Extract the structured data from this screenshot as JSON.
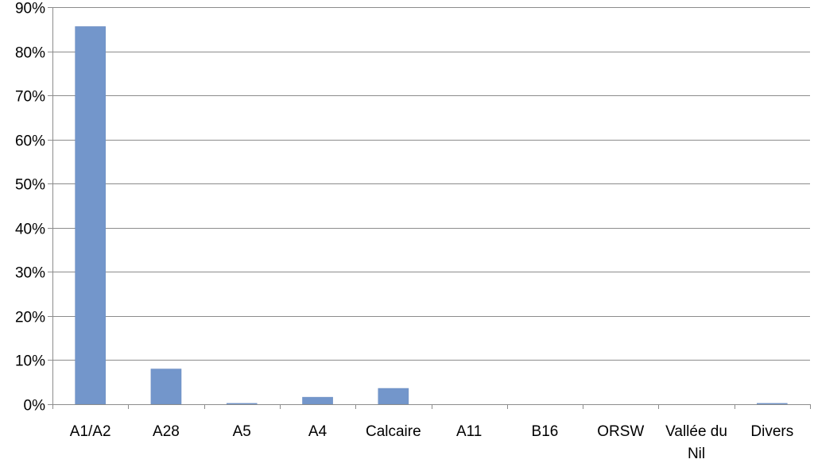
{
  "chart_data": {
    "type": "bar",
    "categories": [
      "A1/A2",
      "A28",
      "A5",
      "A4",
      "Calcaire",
      "A11",
      "B16",
      "ORSW",
      "Vallée du Nil",
      "Divers"
    ],
    "values": [
      85.6,
      8.0,
      0.2,
      1.6,
      3.6,
      0.0,
      0.0,
      0.0,
      0.0,
      0.2
    ],
    "value_unit": "%",
    "ylim": [
      0,
      90
    ],
    "ytick_step": 10,
    "yticks": [
      "0%",
      "10%",
      "20%",
      "30%",
      "40%",
      "50%",
      "60%",
      "70%",
      "80%",
      "90%"
    ],
    "grid": true,
    "legend": "none",
    "colors": {
      "bar": "#7396cb",
      "bar_edge": "#6a8cc0",
      "grid": "#8c8c8c",
      "axis": "#8c8c8c",
      "text": "#000000"
    }
  }
}
